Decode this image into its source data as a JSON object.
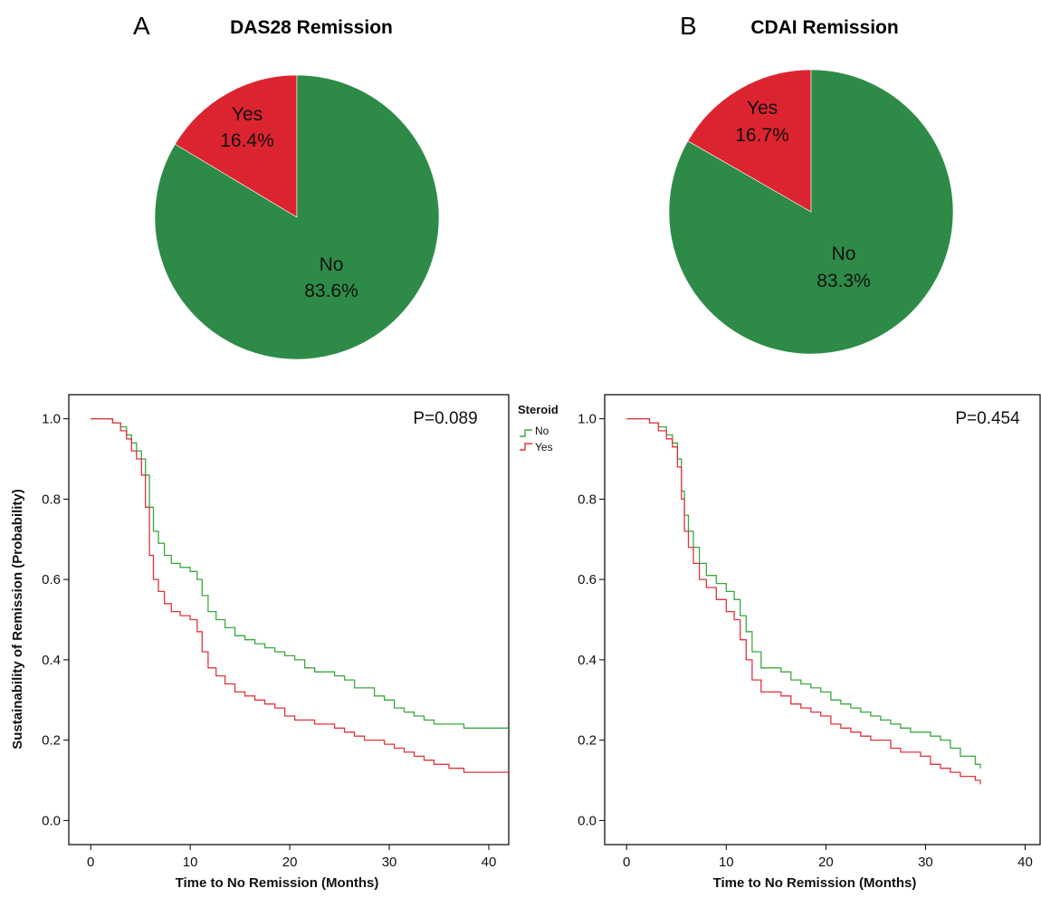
{
  "colors": {
    "green": "#2e8b47",
    "red": "#dc2430",
    "curve_green": "#3aa83f",
    "curve_red": "#e0343e"
  },
  "chart_data": [
    {
      "type": "pie",
      "panel_label": "A",
      "title": "DAS28 Remission",
      "slices": [
        {
          "label": "Yes",
          "value": 16.4,
          "text": "16.4%",
          "color": "#dc2430"
        },
        {
          "label": "No",
          "value": 83.6,
          "text": "83.6%",
          "color": "#2e8b47"
        }
      ]
    },
    {
      "type": "pie",
      "panel_label": "B",
      "title": "CDAI Remission",
      "slices": [
        {
          "label": "Yes",
          "value": 16.7,
          "text": "16.7%",
          "color": "#dc2430"
        },
        {
          "label": "No",
          "value": 83.3,
          "text": "83.3%",
          "color": "#2e8b47"
        }
      ]
    },
    {
      "type": "line",
      "subtype": "kaplan-meier step",
      "annotation": "P=0.089",
      "xlabel": "Time  to No Remission (Months)",
      "ylabel": "Sustainability of Remission (Probability)",
      "xlim": [
        -2.2,
        42
      ],
      "ylim": [
        -0.06,
        1.06
      ],
      "xticks": [
        0,
        10,
        20,
        30,
        40
      ],
      "yticks": [
        "0.0",
        "0.2",
        "0.4",
        "0.6",
        "0.8",
        "1.0"
      ],
      "legend": {
        "title": "Steroid",
        "position": "outside-right"
      },
      "series": [
        {
          "name": "No",
          "color": "#3aa83f",
          "x": [
            0,
            2.2,
            3,
            3.6,
            4.1,
            4.6,
            5.1,
            5.5,
            5.9,
            6.3,
            6.8,
            7.4,
            8.1,
            9,
            10,
            10.7,
            11.2,
            11.8,
            12.6,
            13.5,
            14.5,
            15.5,
            16.5,
            17.5,
            18.5,
            19.5,
            20.5,
            21.5,
            22.5,
            23.5,
            24.5,
            25.5,
            26.5,
            27.5,
            28.5,
            29.5,
            30.5,
            31.5,
            32.5,
            33.5,
            34.5,
            36,
            37.5,
            42
          ],
          "y": [
            1.0,
            0.99,
            0.98,
            0.96,
            0.94,
            0.92,
            0.9,
            0.86,
            0.78,
            0.72,
            0.69,
            0.66,
            0.64,
            0.63,
            0.62,
            0.6,
            0.56,
            0.52,
            0.5,
            0.48,
            0.46,
            0.45,
            0.44,
            0.43,
            0.42,
            0.41,
            0.4,
            0.38,
            0.37,
            0.37,
            0.36,
            0.35,
            0.33,
            0.33,
            0.31,
            0.3,
            0.28,
            0.27,
            0.26,
            0.25,
            0.24,
            0.24,
            0.23,
            0.23
          ]
        },
        {
          "name": "Yes",
          "color": "#e0343e",
          "x": [
            0,
            2.2,
            3,
            3.6,
            4.1,
            4.6,
            5.1,
            5.5,
            5.9,
            6.3,
            6.8,
            7.4,
            8.1,
            9,
            10,
            10.7,
            11.2,
            11.8,
            12.6,
            13.5,
            14.5,
            15.5,
            16.5,
            17.5,
            18.5,
            19.5,
            20.5,
            21.5,
            22.5,
            23.5,
            24.5,
            25.5,
            26.5,
            27.5,
            28.5,
            29.5,
            30.5,
            31.5,
            32.5,
            33.5,
            34.5,
            36,
            37.5,
            42
          ],
          "y": [
            1.0,
            0.99,
            0.97,
            0.95,
            0.92,
            0.9,
            0.86,
            0.78,
            0.66,
            0.6,
            0.57,
            0.54,
            0.52,
            0.51,
            0.5,
            0.47,
            0.42,
            0.38,
            0.36,
            0.34,
            0.32,
            0.31,
            0.3,
            0.29,
            0.28,
            0.26,
            0.25,
            0.25,
            0.24,
            0.24,
            0.23,
            0.22,
            0.21,
            0.2,
            0.2,
            0.19,
            0.18,
            0.17,
            0.16,
            0.15,
            0.14,
            0.13,
            0.12,
            0.12
          ]
        }
      ]
    },
    {
      "type": "line",
      "subtype": "kaplan-meier step",
      "annotation": "P=0.454",
      "xlabel": "Time to No Remission (Months)",
      "xlim": [
        -2.2,
        41.5
      ],
      "ylim": [
        -0.06,
        1.06
      ],
      "xticks": [
        0,
        10,
        20,
        30,
        40
      ],
      "yticks": [
        "0.0",
        "0.2",
        "0.4",
        "0.6",
        "0.8",
        "1.0"
      ],
      "series": [
        {
          "name": "No",
          "color": "#3aa83f",
          "x": [
            0,
            2.3,
            3.2,
            4,
            4.6,
            5.1,
            5.5,
            5.8,
            6.2,
            6.7,
            7.3,
            8,
            9,
            10,
            10.8,
            11.4,
            12,
            12.6,
            13.5,
            14.5,
            15.5,
            16.5,
            17.5,
            18.5,
            19.5,
            20.5,
            21.5,
            22.5,
            23.5,
            24.5,
            25.5,
            26.5,
            27.5,
            28.5,
            29.5,
            30.5,
            31.5,
            32.5,
            33.5,
            34.5,
            35,
            35.5
          ],
          "y": [
            1.0,
            0.99,
            0.98,
            0.96,
            0.94,
            0.9,
            0.82,
            0.76,
            0.72,
            0.68,
            0.64,
            0.61,
            0.59,
            0.57,
            0.55,
            0.51,
            0.47,
            0.42,
            0.38,
            0.38,
            0.37,
            0.35,
            0.34,
            0.33,
            0.32,
            0.3,
            0.29,
            0.28,
            0.27,
            0.26,
            0.25,
            0.24,
            0.23,
            0.22,
            0.22,
            0.21,
            0.2,
            0.18,
            0.16,
            0.16,
            0.14,
            0.13
          ]
        },
        {
          "name": "Yes",
          "color": "#e0343e",
          "x": [
            0,
            2.3,
            3.2,
            4,
            4.6,
            5.1,
            5.5,
            5.8,
            6.2,
            6.7,
            7.3,
            8,
            9,
            10,
            10.8,
            11.4,
            12,
            12.6,
            13.5,
            14.5,
            15.5,
            16.5,
            17.5,
            18.5,
            19.5,
            20.5,
            21.5,
            22.5,
            23.5,
            24.5,
            25.5,
            26.5,
            27.5,
            28.5,
            29.5,
            30.5,
            31.5,
            32.5,
            33.5,
            34.5,
            35,
            35.5
          ],
          "y": [
            1.0,
            0.99,
            0.97,
            0.95,
            0.93,
            0.88,
            0.8,
            0.72,
            0.68,
            0.64,
            0.6,
            0.58,
            0.55,
            0.52,
            0.5,
            0.45,
            0.4,
            0.35,
            0.32,
            0.32,
            0.31,
            0.29,
            0.28,
            0.27,
            0.26,
            0.24,
            0.23,
            0.22,
            0.21,
            0.2,
            0.2,
            0.18,
            0.17,
            0.17,
            0.16,
            0.14,
            0.13,
            0.12,
            0.11,
            0.11,
            0.1,
            0.09
          ]
        }
      ]
    }
  ]
}
